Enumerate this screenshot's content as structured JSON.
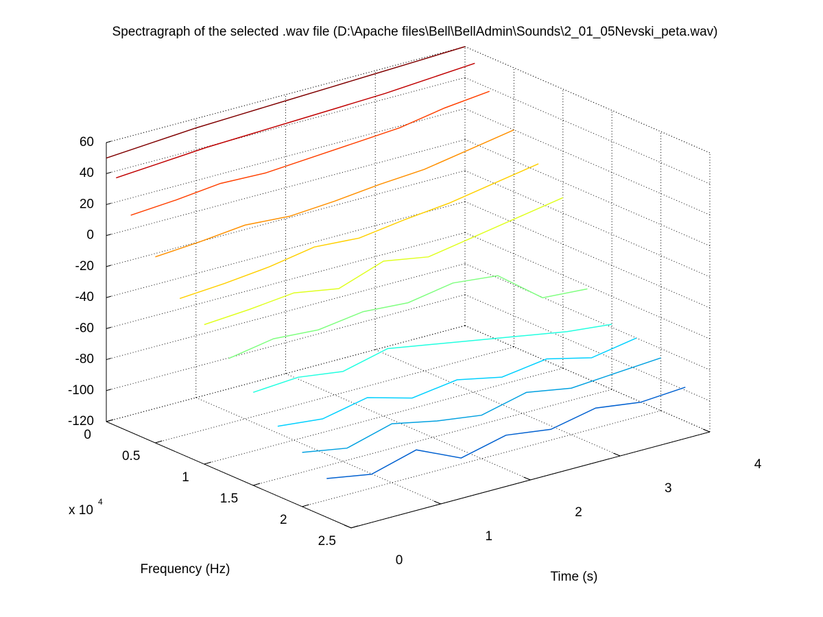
{
  "chart_data": {
    "type": "waterfall",
    "title": "Spectragraph of the selected .wav file (D:\\Apache files\\Bell\\BellAdmin\\Sounds\\2_01_05Nevski_peta.wav)",
    "xlabel": "Time (s)",
    "ylabel": "Frequency (Hz)",
    "y_multiplier": "x 10",
    "y_multiplier_exponent": "4",
    "xlim": [
      0,
      4
    ],
    "xticks": [
      0,
      1,
      2,
      3,
      4
    ],
    "ylim": [
      0,
      25000
    ],
    "yticks": [
      {
        "value": 0,
        "label": "0"
      },
      {
        "value": 5000,
        "label": "0.5"
      },
      {
        "value": 10000,
        "label": "1"
      },
      {
        "value": 15000,
        "label": "1.5"
      },
      {
        "value": 20000,
        "label": "2"
      },
      {
        "value": 25000,
        "label": "2.5"
      }
    ],
    "zlim": [
      -120,
      60
    ],
    "zticks": [
      60,
      40,
      20,
      0,
      -20,
      -40,
      -60,
      -80,
      -100,
      -120
    ],
    "grid": true,
    "x": [
      0,
      0.5,
      1,
      1.5,
      2,
      2.5,
      3,
      3.5,
      4
    ],
    "series": [
      {
        "frequency": 0,
        "color": "#800000",
        "values": [
          50,
          52,
          54,
          55,
          56,
          57,
          58,
          59,
          60
        ]
      },
      {
        "frequency": 1000,
        "color": "#c00000",
        "values": [
          40,
          42,
          44,
          45,
          46,
          47,
          48,
          50,
          52
        ]
      },
      {
        "frequency": 2500,
        "color": "#ff4000",
        "values": [
          20,
          22,
          25,
          24,
          26,
          28,
          30,
          35,
          38
        ]
      },
      {
        "frequency": 5000,
        "color": "#ff9000",
        "values": [
          0,
          2,
          5,
          3,
          5,
          8,
          10,
          15,
          20
        ]
      },
      {
        "frequency": 7500,
        "color": "#ffd000",
        "values": [
          -20,
          -18,
          -15,
          -10,
          -12,
          -8,
          -5,
          0,
          5
        ]
      },
      {
        "frequency": 10000,
        "color": "#e0ff20",
        "values": [
          -30,
          -28,
          -25,
          -30,
          -20,
          -25,
          -20,
          -15,
          -10
        ]
      },
      {
        "frequency": 12500,
        "color": "#80ff80",
        "values": [
          -45,
          -40,
          -42,
          -38,
          -40,
          -35,
          -38,
          -60,
          -62
        ]
      },
      {
        "frequency": 15000,
        "color": "#20ffe0",
        "values": [
          -60,
          -58,
          -62,
          -55,
          -60,
          -65,
          -70,
          -75,
          -78
        ]
      },
      {
        "frequency": 17500,
        "color": "#00d0ff",
        "values": [
          -75,
          -78,
          -72,
          -80,
          -76,
          -82,
          -78,
          -85,
          -80
        ]
      },
      {
        "frequency": 20000,
        "color": "#00a0e0",
        "values": [
          -85,
          -90,
          -82,
          -88,
          -92,
          -85,
          -90,
          -88,
          -86
        ]
      },
      {
        "frequency": 22500,
        "color": "#0060d0",
        "values": [
          -95,
          -100,
          -92,
          -105,
          -98,
          -102,
          -96,
          -100,
          -98
        ]
      }
    ]
  }
}
